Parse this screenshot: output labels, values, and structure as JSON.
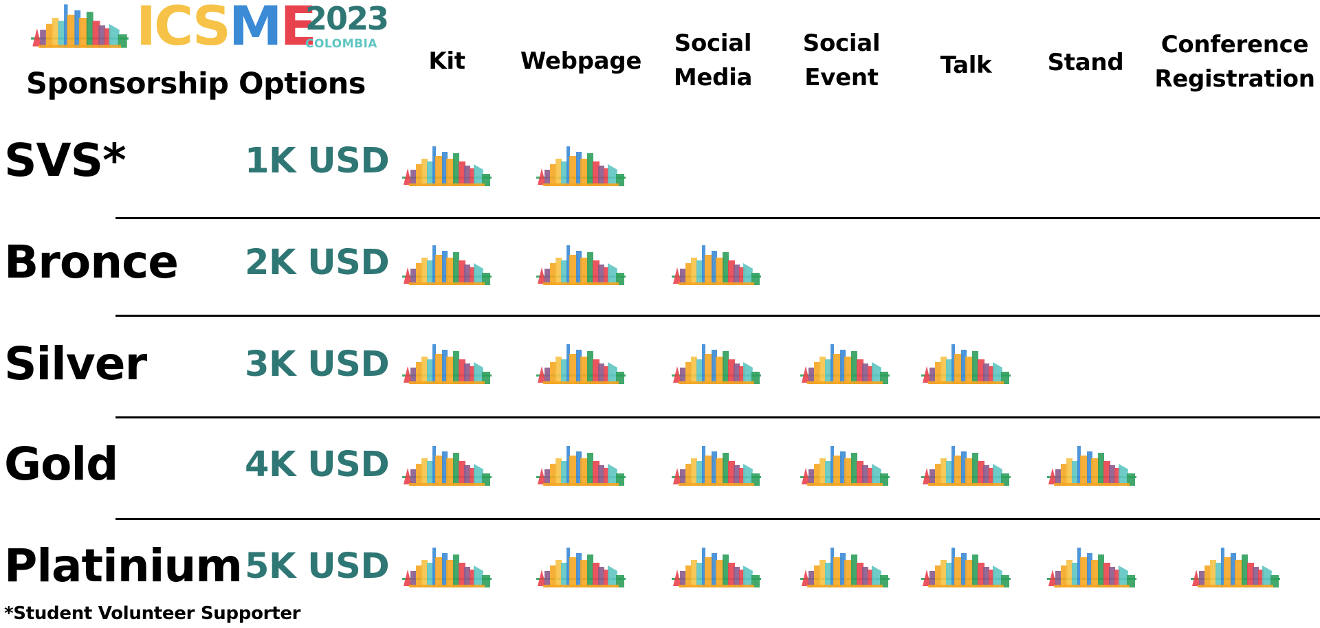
{
  "logo": {
    "word_letters": [
      {
        "char": "I",
        "color": "#f6c348"
      },
      {
        "char": "C",
        "color": "#f6c348"
      },
      {
        "char": "S",
        "color": "#f6c348"
      },
      {
        "char": "M",
        "color": "#3b8ad6"
      },
      {
        "char": "E",
        "color": "#e8424e"
      }
    ],
    "year": "2023",
    "country": "COLOMBIA",
    "skyline_icon": "colorful-city-skyline-icon"
  },
  "title": "Sponsorship Options",
  "columns": [
    {
      "key": "kit",
      "label": "Kit"
    },
    {
      "key": "webpage",
      "label": "Webpage"
    },
    {
      "key": "social_media",
      "label": "Social\nMedia"
    },
    {
      "key": "social_event",
      "label": "Social\nEvent"
    },
    {
      "key": "talk",
      "label": "Talk"
    },
    {
      "key": "stand",
      "label": "Stand"
    },
    {
      "key": "conference_registration",
      "label": "Conference\nRegistration"
    }
  ],
  "tiers": [
    {
      "name": "SVS*",
      "price": "1K USD",
      "included": [
        "kit",
        "webpage"
      ]
    },
    {
      "name": "Bronce",
      "price": "2K USD",
      "included": [
        "kit",
        "webpage",
        "social_media"
      ]
    },
    {
      "name": "Silver",
      "price": "3K USD",
      "included": [
        "kit",
        "webpage",
        "social_media",
        "social_event",
        "talk"
      ]
    },
    {
      "name": "Gold",
      "price": "4K USD",
      "included": [
        "kit",
        "webpage",
        "social_media",
        "social_event",
        "talk",
        "stand"
      ]
    },
    {
      "name": "Platinium",
      "price": "5K USD",
      "included": [
        "kit",
        "webpage",
        "social_media",
        "social_event",
        "talk",
        "stand",
        "conference_registration"
      ]
    }
  ],
  "footnote": "*Student Volunteer Supporter",
  "colors": {
    "price_teal": "#2f7775",
    "country_teal": "#5ec5c1",
    "divider": "#000000",
    "skyline_palette": [
      "#e8424e",
      "#f5a623",
      "#3b8ad6",
      "#5ec5c1",
      "#2e9e5b",
      "#f6c348",
      "#8b5a8c"
    ]
  },
  "included_icon": "colorful-city-skyline-icon"
}
